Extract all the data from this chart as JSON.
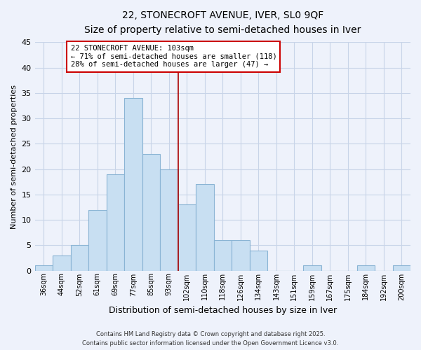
{
  "title": "22, STONECROFT AVENUE, IVER, SL0 9QF",
  "subtitle": "Size of property relative to semi-detached houses in Iver",
  "xlabel": "Distribution of semi-detached houses by size in Iver",
  "ylabel": "Number of semi-detached properties",
  "bin_labels": [
    "36sqm",
    "44sqm",
    "52sqm",
    "61sqm",
    "69sqm",
    "77sqm",
    "85sqm",
    "93sqm",
    "102sqm",
    "110sqm",
    "118sqm",
    "126sqm",
    "134sqm",
    "143sqm",
    "151sqm",
    "159sqm",
    "167sqm",
    "175sqm",
    "184sqm",
    "192sqm",
    "200sqm"
  ],
  "bar_heights": [
    1,
    3,
    5,
    12,
    19,
    34,
    23,
    20,
    13,
    17,
    6,
    6,
    4,
    0,
    0,
    1,
    0,
    0,
    1,
    0,
    1
  ],
  "bar_color": "#c8dff2",
  "bar_edgecolor": "#8ab4d4",
  "annotation_line1": "22 STONECROFT AVENUE: 103sqm",
  "annotation_line2": "← 71% of semi-detached houses are smaller (118)",
  "annotation_line3": "28% of semi-detached houses are larger (47) →",
  "annotation_box_facecolor": "#ffffff",
  "annotation_box_edgecolor": "#cc0000",
  "property_line_color": "#aa0000",
  "ylim": [
    0,
    45
  ],
  "yticks": [
    0,
    5,
    10,
    15,
    20,
    25,
    30,
    35,
    40,
    45
  ],
  "background_color": "#eef2fb",
  "grid_color": "#c8d4e8",
  "footer_line1": "Contains HM Land Registry data © Crown copyright and database right 2025.",
  "footer_line2": "Contains public sector information licensed under the Open Government Licence v3.0."
}
